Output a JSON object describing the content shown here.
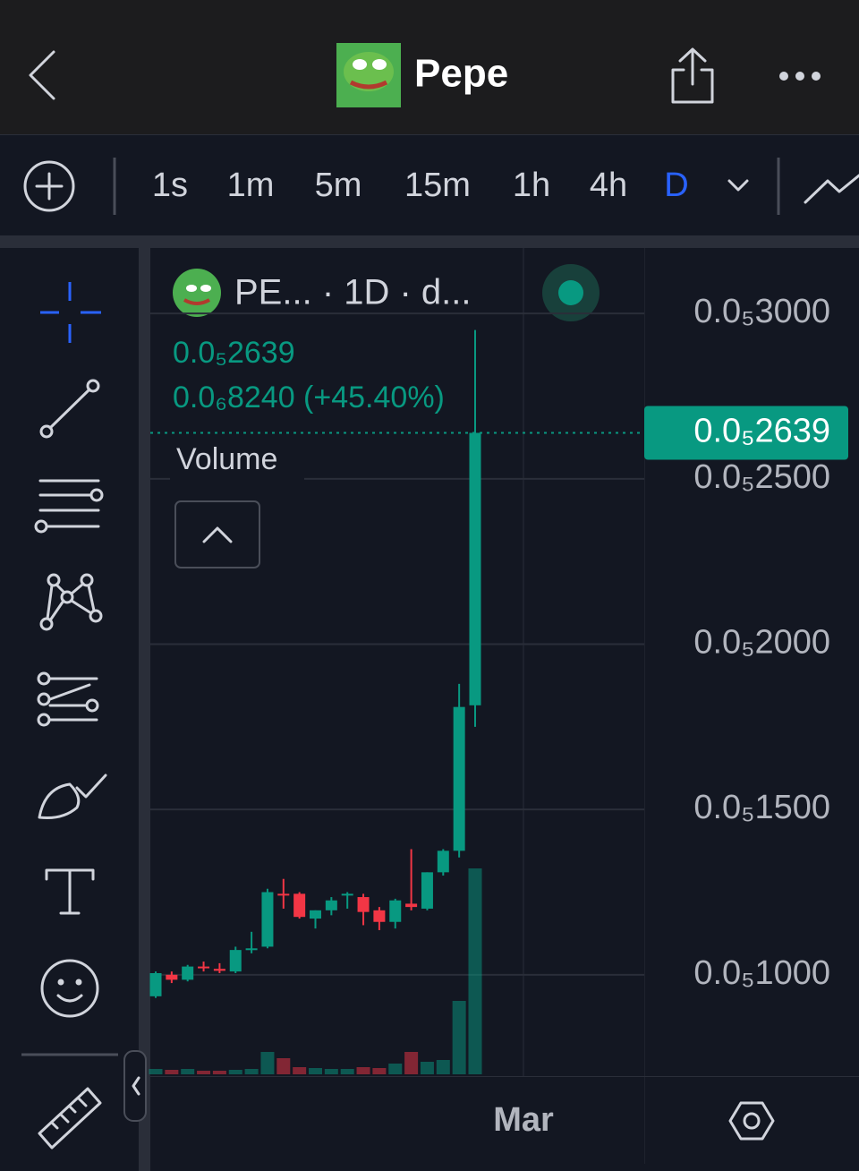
{
  "header": {
    "title": "Pepe"
  },
  "timeframes": [
    "1s",
    "1m",
    "5m",
    "15m",
    "1h",
    "4h",
    "D"
  ],
  "selected_timeframe_index": 6,
  "chart_data": {
    "type": "candlestick",
    "symbol_label": "PE... · 1D · d...",
    "last_price": {
      "value": 2.639e-06,
      "label": "0.0₅2639"
    },
    "change_label": "0.0₆8240 (+45.40%)",
    "volume_label": "Volume",
    "x_label": "Mar",
    "open": [
      9.35e-07,
      1e-06,
      9.85e-07,
      1.025e-06,
      1.018e-06,
      1.01e-06,
      1.075e-06,
      1.085e-06,
      1.245e-06,
      1.245e-06,
      1.17e-06,
      1.195e-06,
      1.24e-06,
      1.235e-06,
      1.195e-06,
      1.16e-06,
      1.215e-06,
      1.2e-06,
      1.31e-06,
      1.375e-06,
      1.815e-06
    ],
    "high": [
      1.01e-06,
      1.01e-06,
      1.03e-06,
      1.04e-06,
      1.035e-06,
      1.085e-06,
      1.13e-06,
      1.26e-06,
      1.29e-06,
      1.25e-06,
      1.195e-06,
      1.235e-06,
      1.25e-06,
      1.245e-06,
      1.205e-06,
      1.23e-06,
      1.38e-06,
      1.31e-06,
      1.38e-06,
      1.88e-06,
      2.95e-06
    ],
    "low": [
      9.3e-07,
      9.75e-07,
      9.8e-07,
      1.01e-06,
      1.005e-06,
      1.005e-06,
      1.065e-06,
      1.08e-06,
      1.2e-06,
      1.17e-06,
      1.14e-06,
      1.18e-06,
      1.2e-06,
      1.15e-06,
      1.135e-06,
      1.14e-06,
      1.195e-06,
      1.195e-06,
      1.3e-06,
      1.355e-06,
      1.75e-06
    ],
    "close": [
      1.005e-06,
      9.85e-07,
      1.025e-06,
      1.02e-06,
      1.012e-06,
      1.075e-06,
      1.08e-06,
      1.25e-06,
      1.24e-06,
      1.175e-06,
      1.195e-06,
      1.225e-06,
      1.245e-06,
      1.19e-06,
      1.16e-06,
      1.225e-06,
      1.205e-06,
      1.31e-06,
      1.375e-06,
      1.81e-06,
      2.639e-06
    ],
    "volume": [
      6,
      5,
      6,
      4,
      4,
      5,
      6,
      25,
      18,
      8,
      7,
      6,
      6,
      8,
      7,
      12,
      25,
      14,
      16,
      82,
      230
    ],
    "up_color": "#089981",
    "down_color": "#f23645",
    "ylim": [
      6.99e-07,
      3.19e-06
    ],
    "yticks": [
      {
        "value": 1e-06,
        "label": "0.0₅1000"
      },
      {
        "value": 1.5e-06,
        "label": "0.0₅1500"
      },
      {
        "value": 2e-06,
        "label": "0.0₅2000"
      },
      {
        "value": 2.5e-06,
        "label": "0.0₅2500"
      },
      {
        "value": 3e-06,
        "label": "0.0₅3000"
      }
    ],
    "grid": true
  }
}
